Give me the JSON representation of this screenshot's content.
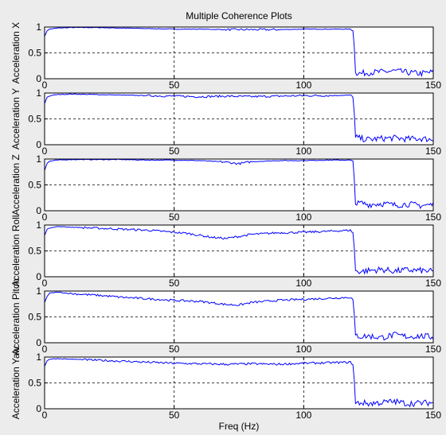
{
  "figure": {
    "title": "Multiple Coherence Plots",
    "xlabel": "Freq (Hz)"
  },
  "chart_data": [
    {
      "type": "line",
      "title": "Multiple Coherence Plots",
      "ylabel": "Acceleration X",
      "xlim": [
        0,
        150
      ],
      "ylim": [
        0,
        1
      ],
      "xticks": [
        0,
        50,
        100,
        150
      ],
      "yticks": [
        0,
        0.5,
        1
      ],
      "grid": true,
      "series": [
        {
          "color": "#0000ff",
          "x": [
            0,
            1,
            2,
            5,
            10,
            20,
            30,
            40,
            50,
            60,
            70,
            80,
            90,
            100,
            110,
            118,
            119,
            119.7,
            120,
            122,
            125,
            130,
            135,
            140,
            145,
            150
          ],
          "values": [
            0.82,
            0.93,
            0.96,
            0.98,
            0.99,
            0.99,
            0.98,
            0.97,
            0.96,
            0.96,
            0.95,
            0.95,
            0.95,
            0.96,
            0.96,
            0.96,
            0.94,
            0.5,
            0.12,
            0.1,
            0.12,
            0.13,
            0.15,
            0.12,
            0.1,
            0.13
          ]
        }
      ]
    },
    {
      "type": "line",
      "ylabel": "Acceleration Y",
      "xlim": [
        0,
        150
      ],
      "ylim": [
        0,
        1
      ],
      "xticks": [
        0,
        50,
        100,
        150
      ],
      "yticks": [
        0,
        0.5,
        1
      ],
      "grid": true,
      "series": [
        {
          "color": "#0000ff",
          "x": [
            0,
            1,
            2,
            5,
            10,
            20,
            30,
            40,
            50,
            60,
            70,
            80,
            90,
            100,
            110,
            118,
            119,
            119.7,
            120,
            122,
            125,
            130,
            135,
            140,
            145,
            150
          ],
          "values": [
            0.8,
            0.92,
            0.95,
            0.97,
            0.98,
            0.97,
            0.96,
            0.95,
            0.94,
            0.93,
            0.94,
            0.93,
            0.94,
            0.95,
            0.95,
            0.96,
            0.93,
            0.5,
            0.15,
            0.12,
            0.1,
            0.12,
            0.13,
            0.11,
            0.12,
            0.1
          ]
        }
      ]
    },
    {
      "type": "line",
      "ylabel": "Acceleration Z",
      "xlim": [
        0,
        150
      ],
      "ylim": [
        0,
        1
      ],
      "xticks": [
        0,
        50,
        100,
        150
      ],
      "yticks": [
        0,
        0.5,
        1
      ],
      "grid": true,
      "series": [
        {
          "color": "#0000ff",
          "x": [
            0,
            1,
            2,
            5,
            10,
            20,
            30,
            40,
            50,
            60,
            70,
            75,
            80,
            90,
            100,
            110,
            118,
            119,
            119.7,
            120,
            122,
            125,
            130,
            135,
            140,
            145,
            150
          ],
          "values": [
            0.78,
            0.92,
            0.96,
            0.98,
            0.99,
            0.99,
            0.99,
            0.98,
            0.98,
            0.97,
            0.94,
            0.91,
            0.95,
            0.97,
            0.97,
            0.98,
            0.98,
            0.95,
            0.5,
            0.12,
            0.15,
            0.12,
            0.14,
            0.11,
            0.13,
            0.1,
            0.12
          ]
        }
      ]
    },
    {
      "type": "line",
      "ylabel": "Acceleration Roll",
      "xlim": [
        0,
        150
      ],
      "ylim": [
        0,
        1
      ],
      "xticks": [
        0,
        50,
        100,
        150
      ],
      "yticks": [
        0,
        0.5,
        1
      ],
      "grid": true,
      "series": [
        {
          "color": "#0000ff",
          "x": [
            0,
            1,
            2,
            5,
            10,
            20,
            30,
            40,
            50,
            55,
            60,
            65,
            70,
            75,
            80,
            90,
            100,
            110,
            118,
            119,
            119.7,
            120,
            122,
            125,
            130,
            135,
            140,
            145,
            150
          ],
          "values": [
            0.8,
            0.92,
            0.95,
            0.97,
            0.96,
            0.94,
            0.92,
            0.9,
            0.86,
            0.84,
            0.8,
            0.76,
            0.74,
            0.78,
            0.82,
            0.85,
            0.86,
            0.88,
            0.9,
            0.85,
            0.45,
            0.12,
            0.1,
            0.12,
            0.14,
            0.11,
            0.13,
            0.12,
            0.1
          ]
        }
      ]
    },
    {
      "type": "line",
      "ylabel": "Acceleration Pitch",
      "xlim": [
        0,
        150
      ],
      "ylim": [
        0,
        1
      ],
      "xticks": [
        0,
        50,
        100,
        150
      ],
      "yticks": [
        0,
        0.5,
        1
      ],
      "grid": true,
      "series": [
        {
          "color": "#0000ff",
          "x": [
            0,
            1,
            2,
            5,
            10,
            20,
            30,
            40,
            50,
            60,
            70,
            75,
            80,
            90,
            100,
            110,
            118,
            119,
            119.7,
            120,
            122,
            125,
            130,
            135,
            140,
            145,
            150
          ],
          "values": [
            0.78,
            0.9,
            0.96,
            0.98,
            0.95,
            0.92,
            0.88,
            0.85,
            0.82,
            0.8,
            0.74,
            0.73,
            0.78,
            0.82,
            0.84,
            0.86,
            0.88,
            0.83,
            0.45,
            0.15,
            0.12,
            0.13,
            0.1,
            0.15,
            0.12,
            0.13,
            0.11
          ]
        }
      ]
    },
    {
      "type": "line",
      "ylabel": "Acceleration Yaw",
      "xlim": [
        0,
        150
      ],
      "ylim": [
        0,
        1
      ],
      "xticks": [
        0,
        50,
        100,
        150
      ],
      "yticks": [
        0,
        0.5,
        1
      ],
      "grid": true,
      "series": [
        {
          "color": "#0000ff",
          "x": [
            0,
            1,
            2,
            5,
            10,
            20,
            30,
            40,
            50,
            60,
            70,
            80,
            90,
            100,
            110,
            118,
            119,
            119.7,
            120,
            122,
            125,
            130,
            135,
            140,
            145,
            150
          ],
          "values": [
            0.82,
            0.93,
            0.96,
            0.97,
            0.96,
            0.94,
            0.92,
            0.9,
            0.88,
            0.87,
            0.86,
            0.87,
            0.86,
            0.88,
            0.89,
            0.9,
            0.86,
            0.45,
            0.1,
            0.12,
            0.1,
            0.12,
            0.14,
            0.1,
            0.11,
            0.12
          ]
        }
      ]
    }
  ]
}
